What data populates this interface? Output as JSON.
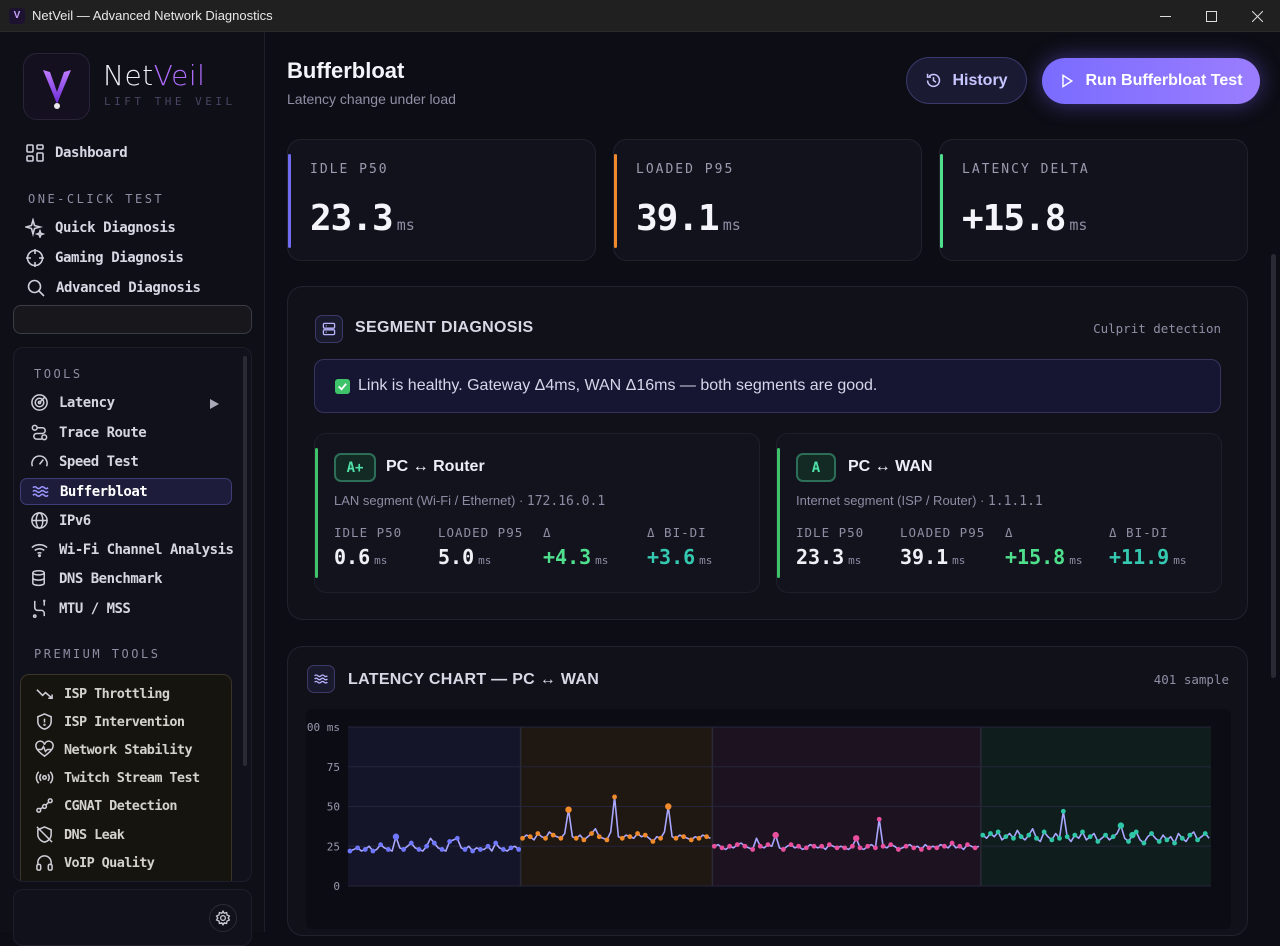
{
  "window": {
    "title": "NetVeil — Advanced Network Diagnostics",
    "icon": "V"
  },
  "brand": {
    "name_a": "Net",
    "name_b": "Veil",
    "tagline": "LIFT THE VEIL"
  },
  "nav": {
    "dashboard": "Dashboard",
    "section_oneclick": "ONE-CLICK TEST",
    "quick": "Quick Diagnosis",
    "gaming": "Gaming Diagnosis",
    "advanced": "Advanced Diagnosis",
    "section_tools": "TOOLS",
    "tools": [
      "Latency",
      "Trace Route",
      "Speed Test",
      "Bufferbloat",
      "IPv6",
      "Wi-Fi Channel Analysis",
      "DNS Benchmark",
      "MTU / MSS"
    ],
    "section_premium": "PREMIUM TOOLS",
    "premium": [
      "ISP Throttling",
      "ISP Intervention",
      "Network Stability",
      "Twitch Stream Test",
      "CGNAT Detection",
      "DNS Leak",
      "VoIP Quality"
    ]
  },
  "page": {
    "title": "Bufferbloat",
    "subtitle": "Latency change under load",
    "history_btn": "History",
    "run_btn": "Run Bufferbloat Test"
  },
  "stats": [
    {
      "label": "IDLE P50",
      "value": "23.3",
      "unit": "ms",
      "color": "#6f6cf0"
    },
    {
      "label": "LOADED P95",
      "value": "39.1",
      "unit": "ms",
      "color": "#f08a2b"
    },
    {
      "label": "LATENCY DELTA",
      "value": "+15.8",
      "unit": "ms",
      "color": "#4fe08e"
    }
  ],
  "segment": {
    "title": "SEGMENT DIAGNOSIS",
    "right": "Culprit detection",
    "alert": "Link is healthy. Gateway Δ4ms, WAN Δ16ms — both segments are good.",
    "cards": [
      {
        "grade": "A+",
        "title": "PC ↔ Router",
        "sub": "LAN segment (Wi-Fi / Ethernet) · ",
        "addr": "172.16.0.1",
        "m": [
          {
            "l": "IDLE P50",
            "v": "0.6",
            "u": "ms"
          },
          {
            "l": "LOADED P95",
            "v": "5.0",
            "u": "ms"
          },
          {
            "l": "Δ",
            "v": "+4.3",
            "u": "ms"
          },
          {
            "l": "Δ BI-DI",
            "v": "+3.6",
            "u": "ms"
          }
        ]
      },
      {
        "grade": "A",
        "title": "PC ↔ WAN",
        "sub": "Internet segment (ISP / Router) · ",
        "addr": "1.1.1.1",
        "m": [
          {
            "l": "IDLE P50",
            "v": "23.3",
            "u": "ms"
          },
          {
            "l": "LOADED P95",
            "v": "39.1",
            "u": "ms"
          },
          {
            "l": "Δ",
            "v": "+15.8",
            "u": "ms"
          },
          {
            "l": "Δ BI-DI",
            "v": "+11.9",
            "u": "ms"
          }
        ]
      }
    ]
  },
  "chart_panel": {
    "title": "LATENCY CHART — PC ↔ WAN",
    "right": "401 sample"
  },
  "chart_data": {
    "type": "line",
    "title": "LATENCY CHART — PC ↔ WAN",
    "ylabel": "ms",
    "ylim": [
      0,
      100
    ],
    "yticks": [
      ".00 ms",
      "75",
      "50",
      "25",
      "0"
    ],
    "series": [
      {
        "phase": "idle",
        "color": "#6f78ff",
        "values": [
          22,
          23,
          24,
          22,
          23,
          25,
          22,
          23,
          26,
          24,
          23,
          22,
          31,
          24,
          23,
          25,
          27,
          24,
          23,
          22,
          25,
          30,
          27,
          24,
          23,
          22,
          28,
          29,
          30,
          24,
          23,
          25,
          22,
          24,
          23,
          23,
          25,
          22,
          27,
          24,
          23,
          22,
          24,
          25,
          23
        ]
      },
      {
        "phase": "download",
        "color": "#f08a2b",
        "values": [
          30,
          32,
          31,
          29,
          33,
          31,
          30,
          34,
          32,
          31,
          30,
          33,
          48,
          31,
          30,
          32,
          29,
          31,
          33,
          36,
          31,
          30,
          29,
          34,
          56,
          31,
          30,
          32,
          31,
          30,
          33,
          31,
          32,
          30,
          28,
          31,
          30,
          34,
          50,
          31,
          30,
          32,
          31,
          30,
          29,
          31,
          30,
          32,
          31,
          30
        ]
      },
      {
        "phase": "upload",
        "color": "#e94f9c",
        "values": [
          25,
          26,
          24,
          23,
          25,
          24,
          26,
          27,
          25,
          24,
          23,
          30,
          25,
          24,
          26,
          25,
          32,
          24,
          23,
          25,
          26,
          24,
          25,
          23,
          24,
          26,
          25,
          24,
          25,
          23,
          26,
          25,
          24,
          25,
          24,
          23,
          25,
          30,
          24,
          23,
          25,
          26,
          24,
          42,
          25,
          24,
          26,
          25,
          23,
          24,
          25,
          26,
          24,
          25,
          23,
          26,
          24,
          25,
          24,
          26,
          25,
          24,
          27,
          24,
          25,
          23,
          26,
          25,
          24,
          25
        ]
      },
      {
        "phase": "bidir",
        "color": "#2ec6a6",
        "values": [
          32,
          30,
          33,
          31,
          34,
          29,
          31,
          33,
          30,
          35,
          31,
          29,
          32,
          36,
          30,
          28,
          34,
          31,
          29,
          33,
          30,
          47,
          31,
          28,
          32,
          30,
          34,
          29,
          31,
          33,
          28,
          30,
          32,
          29,
          31,
          33,
          38,
          30,
          28,
          32,
          34,
          29,
          27,
          31,
          33,
          30,
          28,
          32,
          29,
          31,
          27,
          33,
          30,
          28,
          32,
          34,
          29,
          31,
          33,
          30
        ]
      }
    ],
    "markers": [
      {
        "phase": "idle",
        "values": [
          31
        ]
      },
      {
        "phase": "download",
        "values": [
          48,
          50
        ]
      },
      {
        "phase": "upload",
        "values": [
          32,
          30
        ]
      },
      {
        "phase": "bidir",
        "values": [
          38,
          32
        ]
      }
    ]
  }
}
